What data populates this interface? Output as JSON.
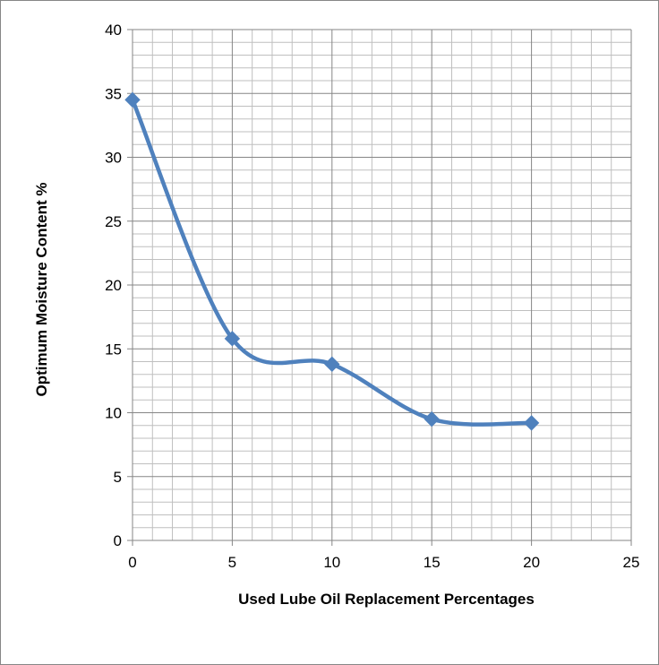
{
  "chart_data": {
    "type": "scatter",
    "title": "",
    "xlabel": "Used Lube Oil Replacement Percentages",
    "ylabel": "Optimum Moisture Content %",
    "xlim": [
      0,
      25
    ],
    "ylim": [
      0,
      40
    ],
    "x_ticks": [
      0,
      5,
      10,
      15,
      20,
      25
    ],
    "y_ticks": [
      0,
      5,
      10,
      15,
      20,
      25,
      30,
      35,
      40
    ],
    "x_tick_labels": [
      "0",
      "5",
      "10",
      "15",
      "20",
      "25"
    ],
    "y_tick_labels": [
      "0",
      "5",
      "10",
      "15",
      "20",
      "25",
      "30",
      "35",
      "40"
    ],
    "line_style": "smoothed",
    "marker": "diamond",
    "grid": {
      "major": true,
      "minor": true
    },
    "legend": "none",
    "series": [
      {
        "x": [
          0,
          5,
          10,
          15,
          20
        ],
        "y": [
          34.5,
          15.8,
          13.8,
          9.5,
          9.2
        ],
        "color": "#4F81BD"
      }
    ],
    "colors": {
      "series": "#4F81BD",
      "grid_major": "#868686",
      "grid_minor": "#bfbfbf",
      "frame": "#868686"
    }
  }
}
